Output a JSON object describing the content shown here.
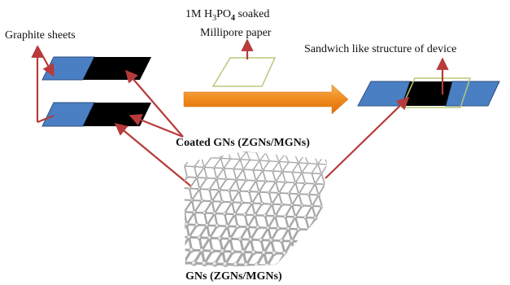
{
  "labels": {
    "graphite_sheets": "Graphite sheets",
    "paper_line1_prefix": "1M H",
    "paper_line1_sub1": "3",
    "paper_line1_mid": "PO",
    "paper_line1_sub2": "4",
    "paper_line1_suffix": " soaked",
    "paper_line2": "Millipore paper",
    "sandwich": "Sandwich like structure of device",
    "coated": "Coated GNs (ZGNs/MGNs)",
    "gns": "GNs (ZGNs/MGNs)"
  },
  "colors": {
    "sheet_blue": "#4a7fc4",
    "sheet_black": "#000000",
    "paper_outline": "#b9c87a",
    "arrow_red": "#b83a3a",
    "big_arrow": "#f08a1c"
  }
}
